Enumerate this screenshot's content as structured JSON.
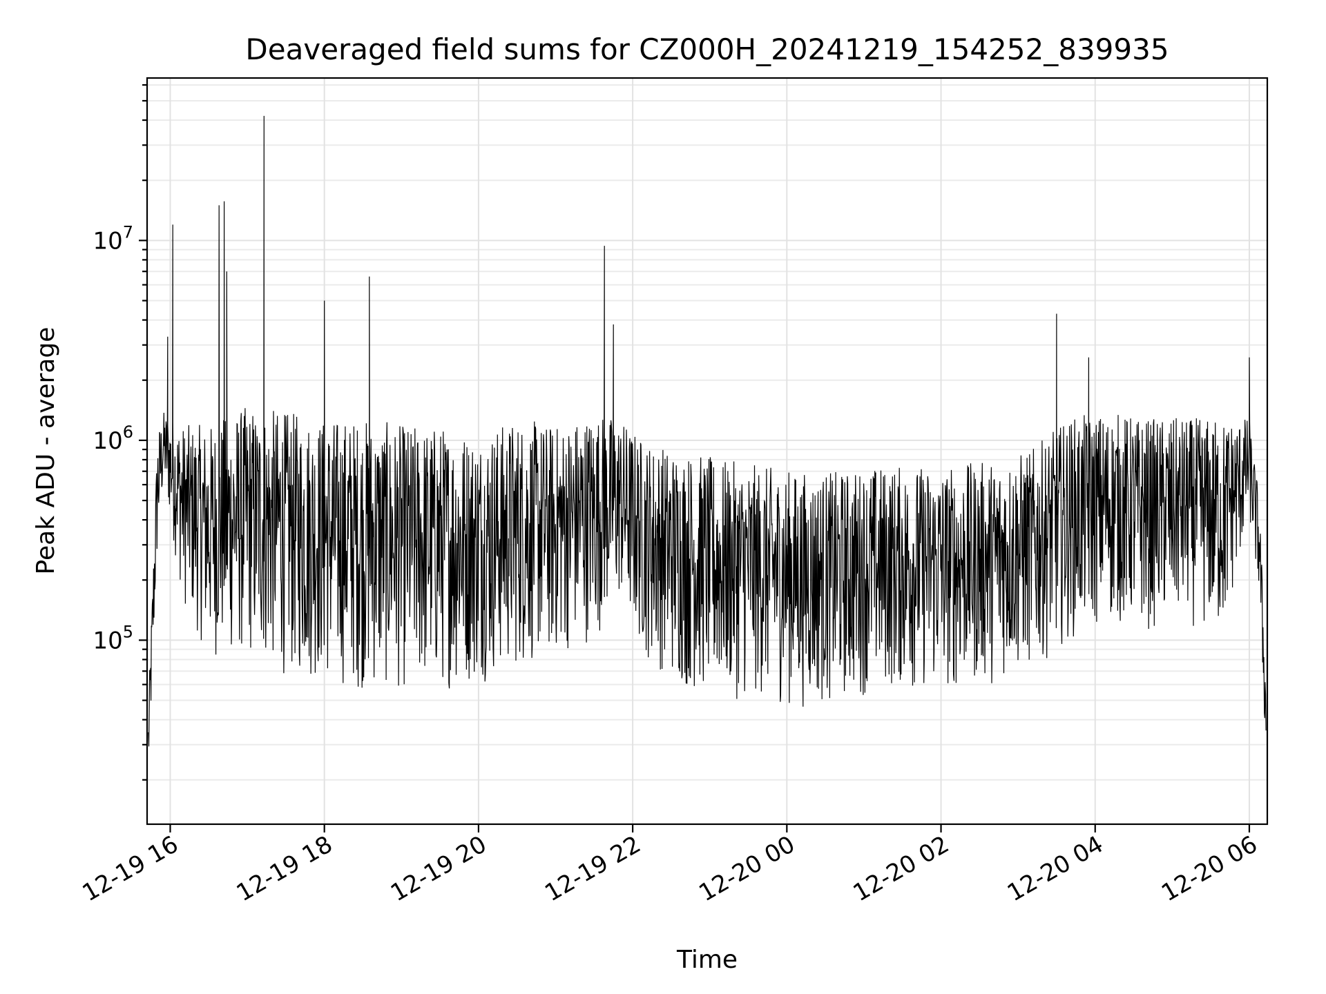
{
  "chart_data": {
    "type": "line",
    "title": "Deaveraged field sums for CZ000H_20241219_154252_839935",
    "xlabel": "Time",
    "ylabel": "Peak ADU - average",
    "yscale": "log",
    "grid": "on (major and minor)",
    "legend": "none",
    "line_color": "#000000",
    "xlim": [
      "2024-12-19 15:42",
      "2024-12-20 06:14"
    ],
    "ylim": [
      12000,
      65000000
    ],
    "x_ticks": [
      {
        "value": "2024-12-19 16:00",
        "label": "12-19 16"
      },
      {
        "value": "2024-12-19 18:00",
        "label": "12-19 18"
      },
      {
        "value": "2024-12-19 20:00",
        "label": "12-19 20"
      },
      {
        "value": "2024-12-19 22:00",
        "label": "12-19 22"
      },
      {
        "value": "2024-12-20 00:00",
        "label": "12-20 00"
      },
      {
        "value": "2024-12-20 02:00",
        "label": "12-20 02"
      },
      {
        "value": "2024-12-20 04:00",
        "label": "12-20 04"
      },
      {
        "value": "2024-12-20 06:00",
        "label": "12-20 06"
      }
    ],
    "y_ticks": [
      {
        "value": 100000,
        "base": "10",
        "exp": "5"
      },
      {
        "value": 1000000,
        "base": "10",
        "exp": "6"
      },
      {
        "value": 10000000,
        "base": "10",
        "exp": "7"
      }
    ],
    "envelope": [
      {
        "t": "2024-12-19 15:43",
        "low": 18000,
        "high": 45000
      },
      {
        "t": "2024-12-19 15:50",
        "low": 250000,
        "high": 1100000
      },
      {
        "t": "2024-12-19 15:55",
        "low": 600000,
        "high": 1400000
      },
      {
        "t": "2024-12-19 16:10",
        "low": 150000,
        "high": 1200000
      },
      {
        "t": "2024-12-19 16:30",
        "low": 80000,
        "high": 1200000
      },
      {
        "t": "2024-12-19 17:00",
        "low": 80000,
        "high": 1500000
      },
      {
        "t": "2024-12-19 17:30",
        "low": 65000,
        "high": 1400000
      },
      {
        "t": "2024-12-19 18:00",
        "low": 60000,
        "high": 1300000
      },
      {
        "t": "2024-12-19 18:30",
        "low": 55000,
        "high": 1300000
      },
      {
        "t": "2024-12-19 19:00",
        "low": 55000,
        "high": 1200000
      },
      {
        "t": "2024-12-19 19:30",
        "low": 55000,
        "high": 1200000
      },
      {
        "t": "2024-12-19 20:00",
        "low": 60000,
        "high": 1100000
      },
      {
        "t": "2024-12-19 20:30",
        "low": 70000,
        "high": 1300000
      },
      {
        "t": "2024-12-19 21:00",
        "low": 80000,
        "high": 1200000
      },
      {
        "t": "2024-12-19 21:30",
        "low": 100000,
        "high": 1400000
      },
      {
        "t": "2024-12-19 21:50",
        "low": 150000,
        "high": 1300000
      },
      {
        "t": "2024-12-19 22:10",
        "low": 80000,
        "high": 1000000
      },
      {
        "t": "2024-12-19 22:40",
        "low": 55000,
        "high": 900000
      },
      {
        "t": "2024-12-19 23:10",
        "low": 50000,
        "high": 800000
      },
      {
        "t": "2024-12-19 23:40",
        "low": 50000,
        "high": 750000
      },
      {
        "t": "2024-12-20 00:10",
        "low": 45000,
        "high": 700000
      },
      {
        "t": "2024-12-20 00:40",
        "low": 48000,
        "high": 700000
      },
      {
        "t": "2024-12-20 01:10",
        "low": 55000,
        "high": 750000
      },
      {
        "t": "2024-12-20 01:40",
        "low": 55000,
        "high": 750000
      },
      {
        "t": "2024-12-20 02:10",
        "low": 55000,
        "high": 750000
      },
      {
        "t": "2024-12-20 02:40",
        "low": 60000,
        "high": 800000
      },
      {
        "t": "2024-12-20 03:10",
        "low": 70000,
        "high": 900000
      },
      {
        "t": "2024-12-20 03:40",
        "low": 100000,
        "high": 1300000
      },
      {
        "t": "2024-12-20 04:10",
        "low": 120000,
        "high": 1400000
      },
      {
        "t": "2024-12-20 04:40",
        "low": 110000,
        "high": 1300000
      },
      {
        "t": "2024-12-20 05:10",
        "low": 120000,
        "high": 1300000
      },
      {
        "t": "2024-12-20 05:40",
        "low": 100000,
        "high": 1300000
      },
      {
        "t": "2024-12-20 06:00",
        "low": 400000,
        "high": 1300000
      },
      {
        "t": "2024-12-20 06:08",
        "low": 150000,
        "high": 500000
      },
      {
        "t": "2024-12-20 06:13",
        "low": 23000,
        "high": 60000
      }
    ],
    "spikes": [
      {
        "t": "2024-12-19 15:58",
        "value": 3300000
      },
      {
        "t": "2024-12-19 16:02",
        "value": 12000000
      },
      {
        "t": "2024-12-19 16:38",
        "value": 15000000
      },
      {
        "t": "2024-12-19 16:42",
        "value": 15700000
      },
      {
        "t": "2024-12-19 16:44",
        "value": 7000000
      },
      {
        "t": "2024-12-19 17:13",
        "value": 42000000
      },
      {
        "t": "2024-12-19 18:00",
        "value": 5000000
      },
      {
        "t": "2024-12-19 18:35",
        "value": 6600000
      },
      {
        "t": "2024-12-19 21:38",
        "value": 9400000
      },
      {
        "t": "2024-12-19 21:45",
        "value": 3800000
      },
      {
        "t": "2024-12-20 03:30",
        "value": 4300000
      },
      {
        "t": "2024-12-20 03:55",
        "value": 2600000
      },
      {
        "t": "2024-12-20 06:00",
        "value": 2600000
      }
    ]
  }
}
